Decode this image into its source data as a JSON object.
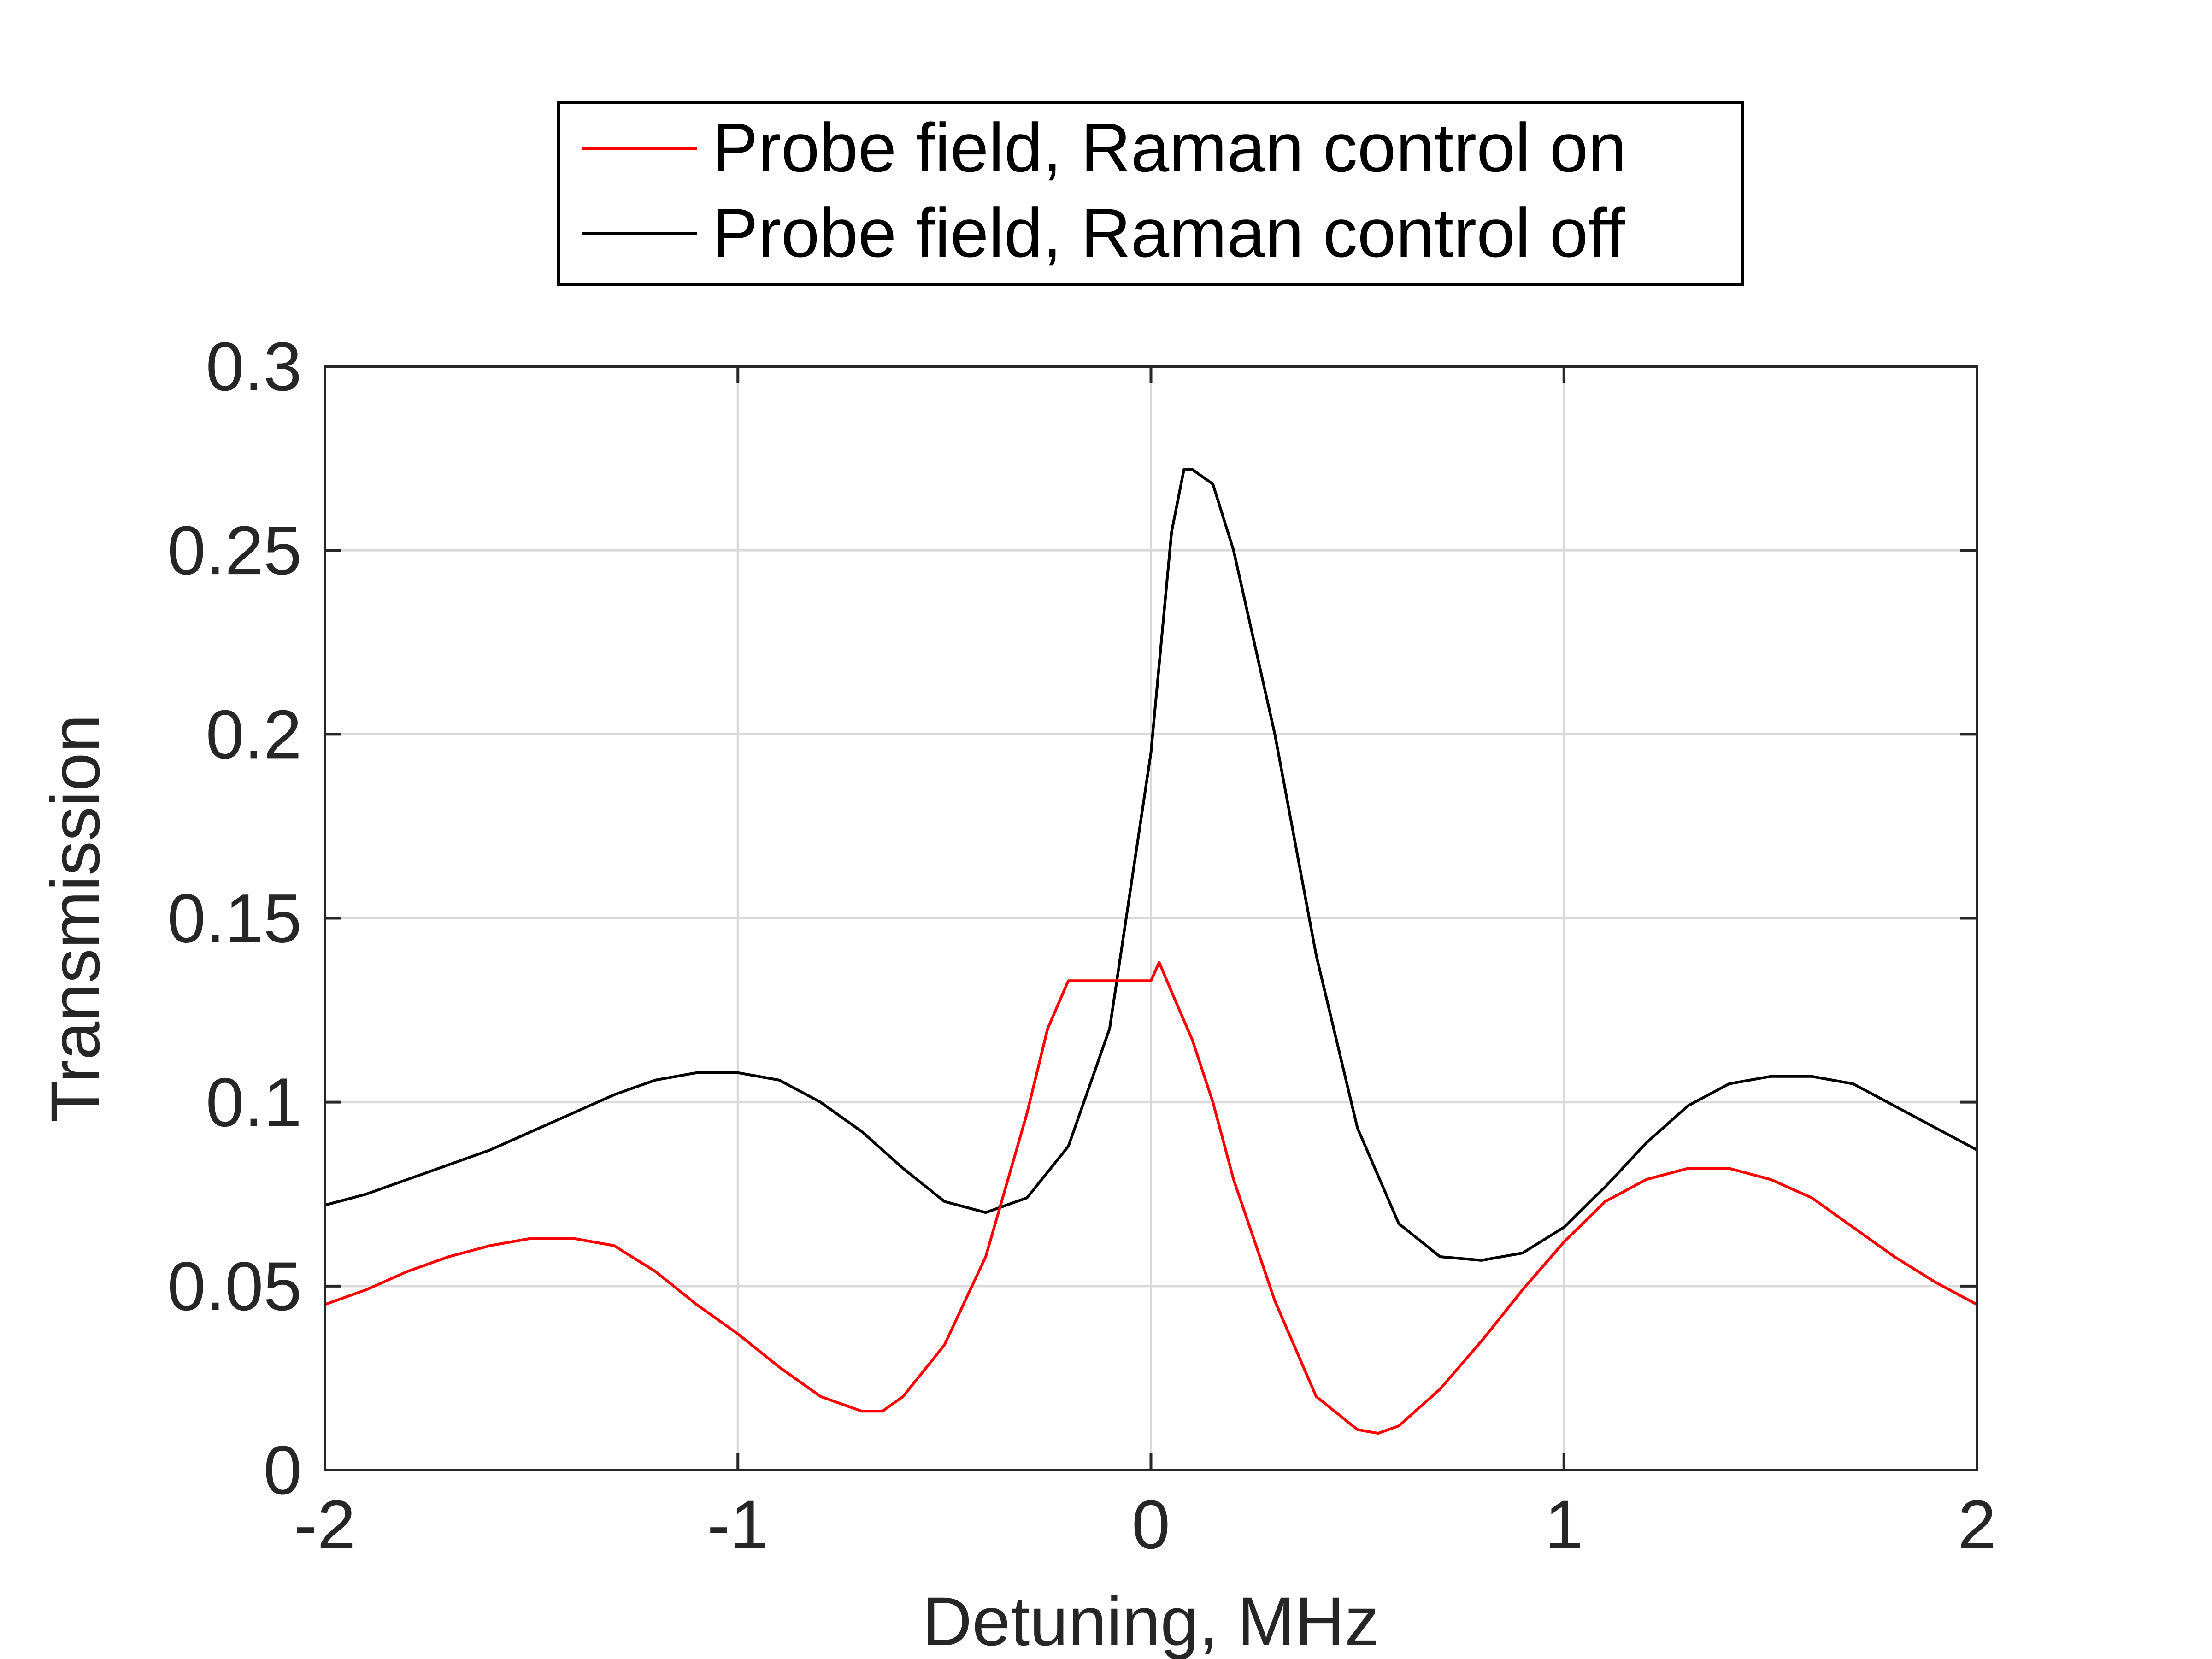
{
  "chart_data": {
    "type": "line",
    "title": "",
    "xlabel": "Detuning, MHz",
    "ylabel": "Transmission",
    "xlim": [
      -2,
      2
    ],
    "ylim": [
      0,
      0.3
    ],
    "xticks": [
      -2,
      -1,
      0,
      1,
      2
    ],
    "xtick_labels": [
      "-2",
      "-1",
      "0",
      "1",
      "2"
    ],
    "yticks": [
      0,
      0.05,
      0.1,
      0.15,
      0.2,
      0.25,
      0.3
    ],
    "ytick_labels": [
      "0",
      "0.05",
      "0.1",
      "0.15",
      "0.2",
      "0.25",
      "0.3"
    ],
    "grid": true,
    "legend_position": "top-center",
    "series": [
      {
        "name": "Probe field, Raman control on",
        "color": "#ff0000",
        "x": [
          -2.0,
          -1.9,
          -1.8,
          -1.7,
          -1.6,
          -1.5,
          -1.4,
          -1.3,
          -1.2,
          -1.1,
          -1.0,
          -0.9,
          -0.8,
          -0.7,
          -0.65,
          -0.6,
          -0.5,
          -0.4,
          -0.3,
          -0.25,
          -0.2,
          -0.1,
          0.0,
          0.02,
          0.05,
          0.1,
          0.15,
          0.2,
          0.3,
          0.4,
          0.5,
          0.55,
          0.6,
          0.7,
          0.8,
          0.9,
          1.0,
          1.1,
          1.2,
          1.3,
          1.4,
          1.5,
          1.6,
          1.7,
          1.8,
          1.9,
          2.0
        ],
        "y": [
          0.045,
          0.049,
          0.054,
          0.058,
          0.061,
          0.063,
          0.063,
          0.061,
          0.054,
          0.045,
          0.037,
          0.028,
          0.02,
          0.016,
          0.016,
          0.02,
          0.034,
          0.058,
          0.097,
          0.12,
          0.133,
          0.133,
          0.133,
          0.138,
          0.13,
          0.117,
          0.1,
          0.079,
          0.046,
          0.02,
          0.011,
          0.01,
          0.012,
          0.022,
          0.035,
          0.049,
          0.062,
          0.073,
          0.079,
          0.082,
          0.082,
          0.079,
          0.074,
          0.066,
          0.058,
          0.051,
          0.045
        ]
      },
      {
        "name": "Probe field, Raman control off",
        "color": "#000000",
        "x": [
          -2.0,
          -1.9,
          -1.8,
          -1.7,
          -1.6,
          -1.5,
          -1.4,
          -1.3,
          -1.2,
          -1.1,
          -1.0,
          -0.9,
          -0.8,
          -0.7,
          -0.6,
          -0.5,
          -0.4,
          -0.3,
          -0.2,
          -0.1,
          0.0,
          0.05,
          0.08,
          0.1,
          0.15,
          0.2,
          0.3,
          0.4,
          0.5,
          0.6,
          0.7,
          0.8,
          0.9,
          1.0,
          1.1,
          1.2,
          1.3,
          1.4,
          1.5,
          1.6,
          1.7,
          1.8,
          1.9,
          2.0
        ],
        "y": [
          0.072,
          0.075,
          0.079,
          0.083,
          0.087,
          0.092,
          0.097,
          0.102,
          0.106,
          0.108,
          0.108,
          0.106,
          0.1,
          0.092,
          0.082,
          0.073,
          0.07,
          0.074,
          0.088,
          0.12,
          0.195,
          0.255,
          0.272,
          0.272,
          0.268,
          0.25,
          0.2,
          0.14,
          0.093,
          0.067,
          0.058,
          0.057,
          0.059,
          0.066,
          0.077,
          0.089,
          0.099,
          0.105,
          0.107,
          0.107,
          0.105,
          0.099,
          0.093,
          0.087
        ]
      }
    ]
  }
}
